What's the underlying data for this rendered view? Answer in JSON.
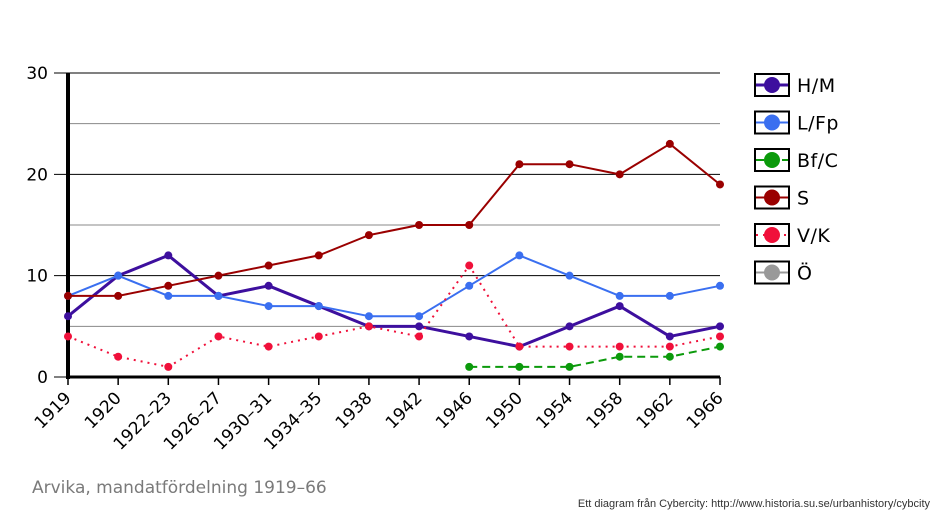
{
  "caption": "Arvika, mandatfördelning 1919–66",
  "credit": "Ett diagram från Cybercity: http://www.historia.su.se/urbanhistory/cybcity",
  "chart_data": {
    "type": "line",
    "title": "Arvika, mandatfördelning 1919–66",
    "xlabel": "",
    "ylabel": "",
    "ylim": [
      0,
      30
    ],
    "yticks": [
      0,
      10,
      20,
      30
    ],
    "grid": true,
    "legend_position": "right",
    "categories": [
      "1919",
      "1920",
      "1922–23",
      "1926–27",
      "1930–31",
      "1934–35",
      "1938",
      "1942",
      "1946",
      "1950",
      "1954",
      "1958",
      "1962",
      "1966"
    ],
    "series": [
      {
        "name": "H/M",
        "color": "#3d0f9e",
        "style": "solid-thick",
        "values": [
          6,
          10,
          12,
          8,
          9,
          7,
          5,
          5,
          4,
          3,
          5,
          7,
          4,
          5
        ]
      },
      {
        "name": "L/Fp",
        "color": "#3a6ff0",
        "style": "solid",
        "values": [
          8,
          10,
          8,
          8,
          7,
          7,
          6,
          6,
          9,
          12,
          10,
          8,
          8,
          9
        ]
      },
      {
        "name": "Bf/C",
        "color": "#0b9a0b",
        "style": "dashed",
        "values": [
          null,
          null,
          null,
          null,
          null,
          null,
          null,
          null,
          1,
          1,
          1,
          2,
          2,
          3
        ]
      },
      {
        "name": "S",
        "color": "#9a0000",
        "style": "solid",
        "values": [
          8,
          8,
          9,
          10,
          11,
          12,
          14,
          15,
          15,
          21,
          21,
          20,
          23,
          19
        ]
      },
      {
        "name": "V/K",
        "color": "#f0103a",
        "style": "dotted",
        "values": [
          4,
          2,
          1,
          4,
          3,
          4,
          5,
          4,
          11,
          3,
          3,
          3,
          3,
          4
        ]
      },
      {
        "name": "Ö",
        "color": "#999999",
        "style": "solid",
        "values": [
          null,
          null,
          null,
          null,
          null,
          null,
          null,
          null,
          null,
          null,
          null,
          null,
          null,
          null
        ]
      }
    ]
  }
}
